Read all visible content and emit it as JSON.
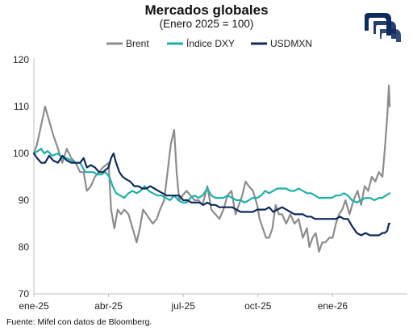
{
  "title": "Mercados globales",
  "subtitle": "(Enero 2025 = 100)",
  "source": "Fuente: Mifel con datos de Bloomberg.",
  "logo_icon": "mifel-logo-icon",
  "chart_data": {
    "type": "line",
    "x_unit": "month",
    "xlim": [
      "2025-01",
      "2026-04"
    ],
    "xticks": [
      {
        "label": "ene-25",
        "x": "2025-01"
      },
      {
        "label": "abr-25",
        "x": "2025-04"
      },
      {
        "label": "jul-25",
        "x": "2025-07"
      },
      {
        "label": "oct-25",
        "x": "2025-10"
      },
      {
        "label": "ene-26",
        "x": "2026-01"
      }
    ],
    "ylim": [
      70,
      120
    ],
    "yticks": [
      70,
      80,
      90,
      100,
      110,
      120
    ],
    "grid": false,
    "legend_position": "top",
    "series": [
      {
        "name": "Brent",
        "color": "#8c8c8c",
        "points": [
          [
            "2025-01-01",
            100
          ],
          [
            "2025-01-05",
            102
          ],
          [
            "2025-01-10",
            106
          ],
          [
            "2025-01-15",
            110
          ],
          [
            "2025-01-20",
            107
          ],
          [
            "2025-01-25",
            104
          ],
          [
            "2025-01-31",
            101
          ],
          [
            "2025-02-05",
            98
          ],
          [
            "2025-02-10",
            101
          ],
          [
            "2025-02-15",
            99
          ],
          [
            "2025-02-20",
            98
          ],
          [
            "2025-02-25",
            96
          ],
          [
            "2025-03-01",
            96
          ],
          [
            "2025-03-05",
            92
          ],
          [
            "2025-03-10",
            93
          ],
          [
            "2025-03-15",
            95
          ],
          [
            "2025-03-20",
            96
          ],
          [
            "2025-03-25",
            97
          ],
          [
            "2025-04-01",
            98
          ],
          [
            "2025-04-04",
            88
          ],
          [
            "2025-04-08",
            84
          ],
          [
            "2025-04-12",
            88
          ],
          [
            "2025-04-16",
            87
          ],
          [
            "2025-04-20",
            88
          ],
          [
            "2025-04-25",
            87
          ],
          [
            "2025-04-30",
            84
          ],
          [
            "2025-05-05",
            81
          ],
          [
            "2025-05-09",
            84
          ],
          [
            "2025-05-13",
            88
          ],
          [
            "2025-05-17",
            87
          ],
          [
            "2025-05-21",
            86
          ],
          [
            "2025-05-25",
            85
          ],
          [
            "2025-05-30",
            86
          ],
          [
            "2025-06-03",
            88
          ],
          [
            "2025-06-08",
            90
          ],
          [
            "2025-06-12",
            96
          ],
          [
            "2025-06-16",
            102
          ],
          [
            "2025-06-20",
            105
          ],
          [
            "2025-06-23",
            96
          ],
          [
            "2025-06-26",
            90
          ],
          [
            "2025-06-30",
            91
          ],
          [
            "2025-07-05",
            92
          ],
          [
            "2025-07-10",
            91
          ],
          [
            "2025-07-15",
            90
          ],
          [
            "2025-07-20",
            90
          ],
          [
            "2025-07-25",
            89
          ],
          [
            "2025-07-31",
            93
          ],
          [
            "2025-08-05",
            88
          ],
          [
            "2025-08-10",
            87
          ],
          [
            "2025-08-15",
            86
          ],
          [
            "2025-08-20",
            88
          ],
          [
            "2025-08-25",
            91
          ],
          [
            "2025-08-30",
            92
          ],
          [
            "2025-09-04",
            87
          ],
          [
            "2025-09-08",
            89
          ],
          [
            "2025-09-12",
            91
          ],
          [
            "2025-09-16",
            94
          ],
          [
            "2025-09-20",
            93
          ],
          [
            "2025-09-25",
            92
          ],
          [
            "2025-09-30",
            89
          ],
          [
            "2025-10-03",
            86
          ],
          [
            "2025-10-07",
            84
          ],
          [
            "2025-10-11",
            82
          ],
          [
            "2025-10-15",
            82
          ],
          [
            "2025-10-19",
            84
          ],
          [
            "2025-10-23",
            89
          ],
          [
            "2025-10-27",
            87
          ],
          [
            "2025-10-31",
            87
          ],
          [
            "2025-11-05",
            85
          ],
          [
            "2025-11-10",
            87
          ],
          [
            "2025-11-15",
            85
          ],
          [
            "2025-11-20",
            86
          ],
          [
            "2025-11-25",
            82
          ],
          [
            "2025-11-30",
            84
          ],
          [
            "2025-12-03",
            80
          ],
          [
            "2025-12-07",
            82
          ],
          [
            "2025-12-11",
            83
          ],
          [
            "2025-12-15",
            79
          ],
          [
            "2025-12-19",
            81
          ],
          [
            "2025-12-23",
            81
          ],
          [
            "2025-12-28",
            82
          ],
          [
            "2026-01-01",
            82
          ],
          [
            "2026-01-05",
            85
          ],
          [
            "2026-01-09",
            87
          ],
          [
            "2026-01-13",
            88
          ],
          [
            "2026-01-17",
            90
          ],
          [
            "2026-01-22",
            87
          ],
          [
            "2026-01-27",
            90
          ],
          [
            "2026-02-01",
            92
          ],
          [
            "2026-02-05",
            89
          ],
          [
            "2026-02-09",
            93
          ],
          [
            "2026-02-13",
            92
          ],
          [
            "2026-02-17",
            95
          ],
          [
            "2026-02-21",
            94
          ],
          [
            "2026-02-25",
            96
          ],
          [
            "2026-03-01",
            95
          ],
          [
            "2026-03-04",
            101
          ],
          [
            "2026-03-07",
            108
          ],
          [
            "2026-03-09",
            114.5
          ],
          [
            "2026-03-10",
            110
          ]
        ]
      },
      {
        "name": "Índice DXY",
        "color": "#1bb1a9",
        "points": [
          [
            "2025-01-01",
            100
          ],
          [
            "2025-01-06",
            100.5
          ],
          [
            "2025-01-10",
            101
          ],
          [
            "2025-01-14",
            100
          ],
          [
            "2025-01-18",
            100.5
          ],
          [
            "2025-01-24",
            99.5
          ],
          [
            "2025-01-31",
            100
          ],
          [
            "2025-02-05",
            99
          ],
          [
            "2025-02-10",
            99
          ],
          [
            "2025-02-15",
            98.5
          ],
          [
            "2025-02-20",
            98
          ],
          [
            "2025-02-25",
            98
          ],
          [
            "2025-03-03",
            96
          ],
          [
            "2025-03-08",
            96
          ],
          [
            "2025-03-13",
            96
          ],
          [
            "2025-03-18",
            95.5
          ],
          [
            "2025-03-23",
            95.5
          ],
          [
            "2025-03-28",
            96
          ],
          [
            "2025-04-02",
            95
          ],
          [
            "2025-04-06",
            93
          ],
          [
            "2025-04-10",
            91.5
          ],
          [
            "2025-04-15",
            91
          ],
          [
            "2025-04-20",
            90.5
          ],
          [
            "2025-04-25",
            91.5
          ],
          [
            "2025-04-30",
            92
          ],
          [
            "2025-05-05",
            91.5
          ],
          [
            "2025-05-10",
            92
          ],
          [
            "2025-05-15",
            93
          ],
          [
            "2025-05-20",
            92
          ],
          [
            "2025-05-25",
            91.5
          ],
          [
            "2025-05-31",
            91
          ],
          [
            "2025-06-05",
            91
          ],
          [
            "2025-06-10",
            90.5
          ],
          [
            "2025-06-15",
            90
          ],
          [
            "2025-06-20",
            91
          ],
          [
            "2025-06-25",
            90
          ],
          [
            "2025-06-30",
            89.5
          ],
          [
            "2025-07-05",
            89.5
          ],
          [
            "2025-07-10",
            90.5
          ],
          [
            "2025-07-15",
            91
          ],
          [
            "2025-07-20",
            90.5
          ],
          [
            "2025-07-25",
            91
          ],
          [
            "2025-07-31",
            92.5
          ],
          [
            "2025-08-05",
            91
          ],
          [
            "2025-08-10",
            90.5
          ],
          [
            "2025-08-15",
            90.5
          ],
          [
            "2025-08-20",
            90.5
          ],
          [
            "2025-08-25",
            91
          ],
          [
            "2025-08-31",
            90.5
          ],
          [
            "2025-09-05",
            90
          ],
          [
            "2025-09-10",
            90
          ],
          [
            "2025-09-15",
            89.5
          ],
          [
            "2025-09-20",
            90
          ],
          [
            "2025-09-25",
            90.5
          ],
          [
            "2025-09-30",
            90.5
          ],
          [
            "2025-10-05",
            91
          ],
          [
            "2025-10-10",
            92
          ],
          [
            "2025-10-15",
            91.5
          ],
          [
            "2025-10-20",
            92
          ],
          [
            "2025-10-25",
            92.5
          ],
          [
            "2025-10-31",
            92.5
          ],
          [
            "2025-11-05",
            92.5
          ],
          [
            "2025-11-10",
            92
          ],
          [
            "2025-11-15",
            92
          ],
          [
            "2025-11-20",
            92.5
          ],
          [
            "2025-11-25",
            92
          ],
          [
            "2025-11-30",
            91.5
          ],
          [
            "2025-12-05",
            91.5
          ],
          [
            "2025-12-10",
            91
          ],
          [
            "2025-12-15",
            90.5
          ],
          [
            "2025-12-20",
            90.5
          ],
          [
            "2025-12-25",
            90.5
          ],
          [
            "2025-12-31",
            90.5
          ],
          [
            "2026-01-05",
            91
          ],
          [
            "2026-01-10",
            91
          ],
          [
            "2026-01-15",
            91.5
          ],
          [
            "2026-01-20",
            91
          ],
          [
            "2026-01-25",
            90
          ],
          [
            "2026-01-31",
            89.5
          ],
          [
            "2026-02-05",
            90
          ],
          [
            "2026-02-10",
            90.5
          ],
          [
            "2026-02-15",
            90.5
          ],
          [
            "2026-02-20",
            90
          ],
          [
            "2026-02-25",
            90.5
          ],
          [
            "2026-03-01",
            90.5
          ],
          [
            "2026-03-05",
            91
          ],
          [
            "2026-03-10",
            91.5
          ]
        ]
      },
      {
        "name": "USDMXN",
        "color": "#0e2a5c",
        "points": [
          [
            "2025-01-01",
            100
          ],
          [
            "2025-01-05",
            99
          ],
          [
            "2025-01-10",
            98
          ],
          [
            "2025-01-15",
            98
          ],
          [
            "2025-01-20",
            99.5
          ],
          [
            "2025-01-25",
            98.5
          ],
          [
            "2025-01-31",
            98
          ],
          [
            "2025-02-05",
            99.5
          ],
          [
            "2025-02-10",
            98.5
          ],
          [
            "2025-02-15",
            98
          ],
          [
            "2025-02-20",
            98
          ],
          [
            "2025-02-25",
            98
          ],
          [
            "2025-03-01",
            99
          ],
          [
            "2025-03-05",
            97
          ],
          [
            "2025-03-10",
            97.5
          ],
          [
            "2025-03-15",
            97
          ],
          [
            "2025-03-20",
            96
          ],
          [
            "2025-03-25",
            96
          ],
          [
            "2025-04-01",
            97
          ],
          [
            "2025-04-04",
            99
          ],
          [
            "2025-04-07",
            100
          ],
          [
            "2025-04-10",
            98
          ],
          [
            "2025-04-14",
            96
          ],
          [
            "2025-04-18",
            95
          ],
          [
            "2025-04-22",
            94.5
          ],
          [
            "2025-04-27",
            94
          ],
          [
            "2025-05-02",
            93
          ],
          [
            "2025-05-07",
            93
          ],
          [
            "2025-05-12",
            92.5
          ],
          [
            "2025-05-17",
            92.5
          ],
          [
            "2025-05-22",
            93
          ],
          [
            "2025-05-27",
            92.5
          ],
          [
            "2025-06-01",
            92
          ],
          [
            "2025-06-06",
            91.5
          ],
          [
            "2025-06-11",
            91
          ],
          [
            "2025-06-16",
            91
          ],
          [
            "2025-06-21",
            91
          ],
          [
            "2025-06-26",
            91
          ],
          [
            "2025-07-01",
            90
          ],
          [
            "2025-07-06",
            90
          ],
          [
            "2025-07-11",
            89.5
          ],
          [
            "2025-07-16",
            89.5
          ],
          [
            "2025-07-21",
            89.5
          ],
          [
            "2025-07-26",
            89
          ],
          [
            "2025-07-31",
            89.5
          ],
          [
            "2025-08-05",
            89
          ],
          [
            "2025-08-10",
            89
          ],
          [
            "2025-08-15",
            88.5
          ],
          [
            "2025-08-20",
            88.5
          ],
          [
            "2025-08-25",
            88.5
          ],
          [
            "2025-08-31",
            88.5
          ],
          [
            "2025-09-05",
            88
          ],
          [
            "2025-09-10",
            87.5
          ],
          [
            "2025-09-15",
            87.5
          ],
          [
            "2025-09-20",
            87.5
          ],
          [
            "2025-09-25",
            87.5
          ],
          [
            "2025-09-30",
            88
          ],
          [
            "2025-10-05",
            88
          ],
          [
            "2025-10-10",
            88
          ],
          [
            "2025-10-15",
            88.5
          ],
          [
            "2025-10-20",
            87.5
          ],
          [
            "2025-10-25",
            88
          ],
          [
            "2025-10-31",
            88.5
          ],
          [
            "2025-11-05",
            88
          ],
          [
            "2025-11-10",
            87.5
          ],
          [
            "2025-11-15",
            87
          ],
          [
            "2025-11-20",
            87
          ],
          [
            "2025-11-25",
            87
          ],
          [
            "2025-11-30",
            86.5
          ],
          [
            "2025-12-05",
            86.5
          ],
          [
            "2025-12-10",
            86
          ],
          [
            "2025-12-15",
            86
          ],
          [
            "2025-12-20",
            86
          ],
          [
            "2025-12-25",
            86
          ],
          [
            "2025-12-31",
            86
          ],
          [
            "2026-01-05",
            86
          ],
          [
            "2026-01-10",
            86.5
          ],
          [
            "2026-01-15",
            86
          ],
          [
            "2026-01-20",
            86
          ],
          [
            "2026-01-25",
            84.5
          ],
          [
            "2026-01-31",
            83
          ],
          [
            "2026-02-05",
            82.5
          ],
          [
            "2026-02-10",
            83
          ],
          [
            "2026-02-15",
            82.5
          ],
          [
            "2026-02-20",
            82.5
          ],
          [
            "2026-02-25",
            82.5
          ],
          [
            "2026-03-01",
            83
          ],
          [
            "2026-03-04",
            83
          ],
          [
            "2026-03-07",
            83.5
          ],
          [
            "2026-03-09",
            85
          ],
          [
            "2026-03-10",
            85
          ]
        ]
      }
    ]
  }
}
